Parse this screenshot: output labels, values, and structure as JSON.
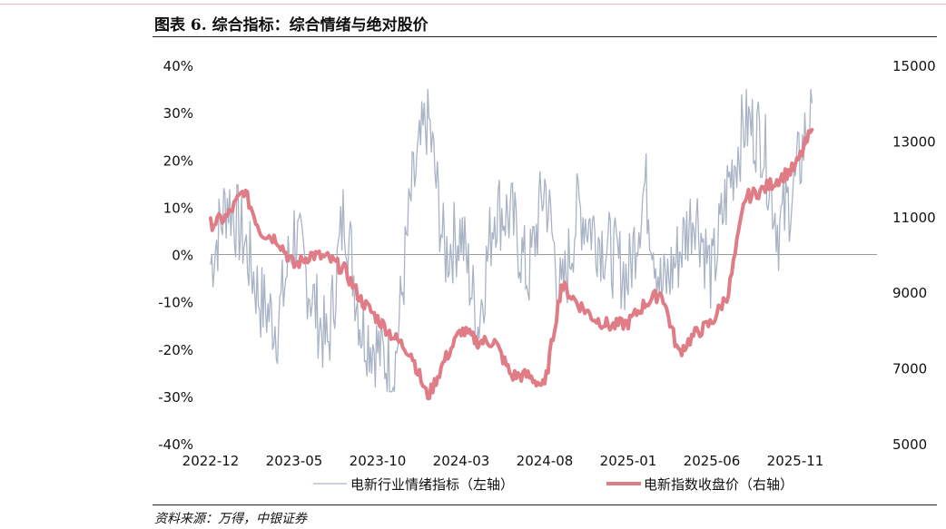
{
  "figure": {
    "title": "图表 6. 综合指标：综合情绪与绝对股价",
    "source": "资料来源：万得，中银证券"
  },
  "colors": {
    "sentiment": "#a9b3c6",
    "price": "#e07c86",
    "zero_line": "#9a9a9a",
    "top_rule": "#e8bcc4"
  },
  "chart_data": {
    "type": "line",
    "x_tick_labels": [
      "2022-12",
      "2023-05",
      "2023-10",
      "2024-03",
      "2024-08",
      "2025-01",
      "2025-06",
      "2025-11"
    ],
    "left_axis": {
      "ticks": [
        "40%",
        "30%",
        "20%",
        "10%",
        "0%",
        "-10%",
        "-20%",
        "-30%",
        "-40%"
      ],
      "ylim": [
        -40,
        40
      ],
      "unit": "%"
    },
    "right_axis": {
      "ticks": [
        "15000",
        "13000",
        "11000",
        "9000",
        "7000",
        "5000"
      ],
      "ylim": [
        5000,
        15000
      ]
    },
    "grid": false,
    "zero_line": true,
    "legend_position": "bottom",
    "series": [
      {
        "name": "电新行业情绪指标（左轴）",
        "axis": "left",
        "x": [
          "2022-12",
          "2023-01",
          "2023-02",
          "2023-03",
          "2023-04",
          "2023-05",
          "2023-06",
          "2023-07",
          "2023-08",
          "2023-09",
          "2023-10",
          "2023-11",
          "2023-12",
          "2024-01",
          "2024-02",
          "2024-03",
          "2024-04",
          "2024-05",
          "2024-06",
          "2024-07",
          "2024-08",
          "2024-09",
          "2024-10",
          "2024-11",
          "2024-12",
          "2025-01",
          "2025-02",
          "2025-03",
          "2025-04",
          "2025-05",
          "2025-06",
          "2025-07",
          "2025-08",
          "2025-09",
          "2025-10",
          "2025-11",
          "2025-12"
        ],
        "values": [
          -2,
          12,
          3,
          -10,
          -15,
          5,
          -8,
          -20,
          10,
          -15,
          -20,
          -25,
          12,
          30,
          0,
          5,
          -15,
          10,
          8,
          -5,
          15,
          -10,
          10,
          5,
          0,
          -5,
          15,
          -8,
          0,
          10,
          -5,
          15,
          28,
          25,
          5,
          15,
          32
        ]
      },
      {
        "name": "电新指数收盘价（右轴）",
        "axis": "right",
        "x": [
          "2022-12",
          "2023-01",
          "2023-02",
          "2023-03",
          "2023-04",
          "2023-05",
          "2023-06",
          "2023-07",
          "2023-08",
          "2023-09",
          "2023-10",
          "2023-11",
          "2023-12",
          "2024-01",
          "2024-02",
          "2024-03",
          "2024-04",
          "2024-05",
          "2024-06",
          "2024-07",
          "2024-08",
          "2024-09",
          "2024-10",
          "2024-11",
          "2024-12",
          "2025-01",
          "2025-02",
          "2025-03",
          "2025-04",
          "2025-05",
          "2025-06",
          "2025-07",
          "2025-08",
          "2025-09",
          "2025-10",
          "2025-11",
          "2025-12"
        ],
        "values": [
          10800,
          11000,
          11700,
          10600,
          10400,
          9700,
          10000,
          9900,
          9600,
          8800,
          8300,
          7800,
          7400,
          6200,
          7200,
          8000,
          7700,
          7700,
          6800,
          6800,
          6500,
          9200,
          8700,
          8300,
          8100,
          8200,
          8700,
          9000,
          7400,
          7900,
          8200,
          9000,
          11500,
          11700,
          12000,
          12300,
          13300
        ]
      }
    ]
  }
}
